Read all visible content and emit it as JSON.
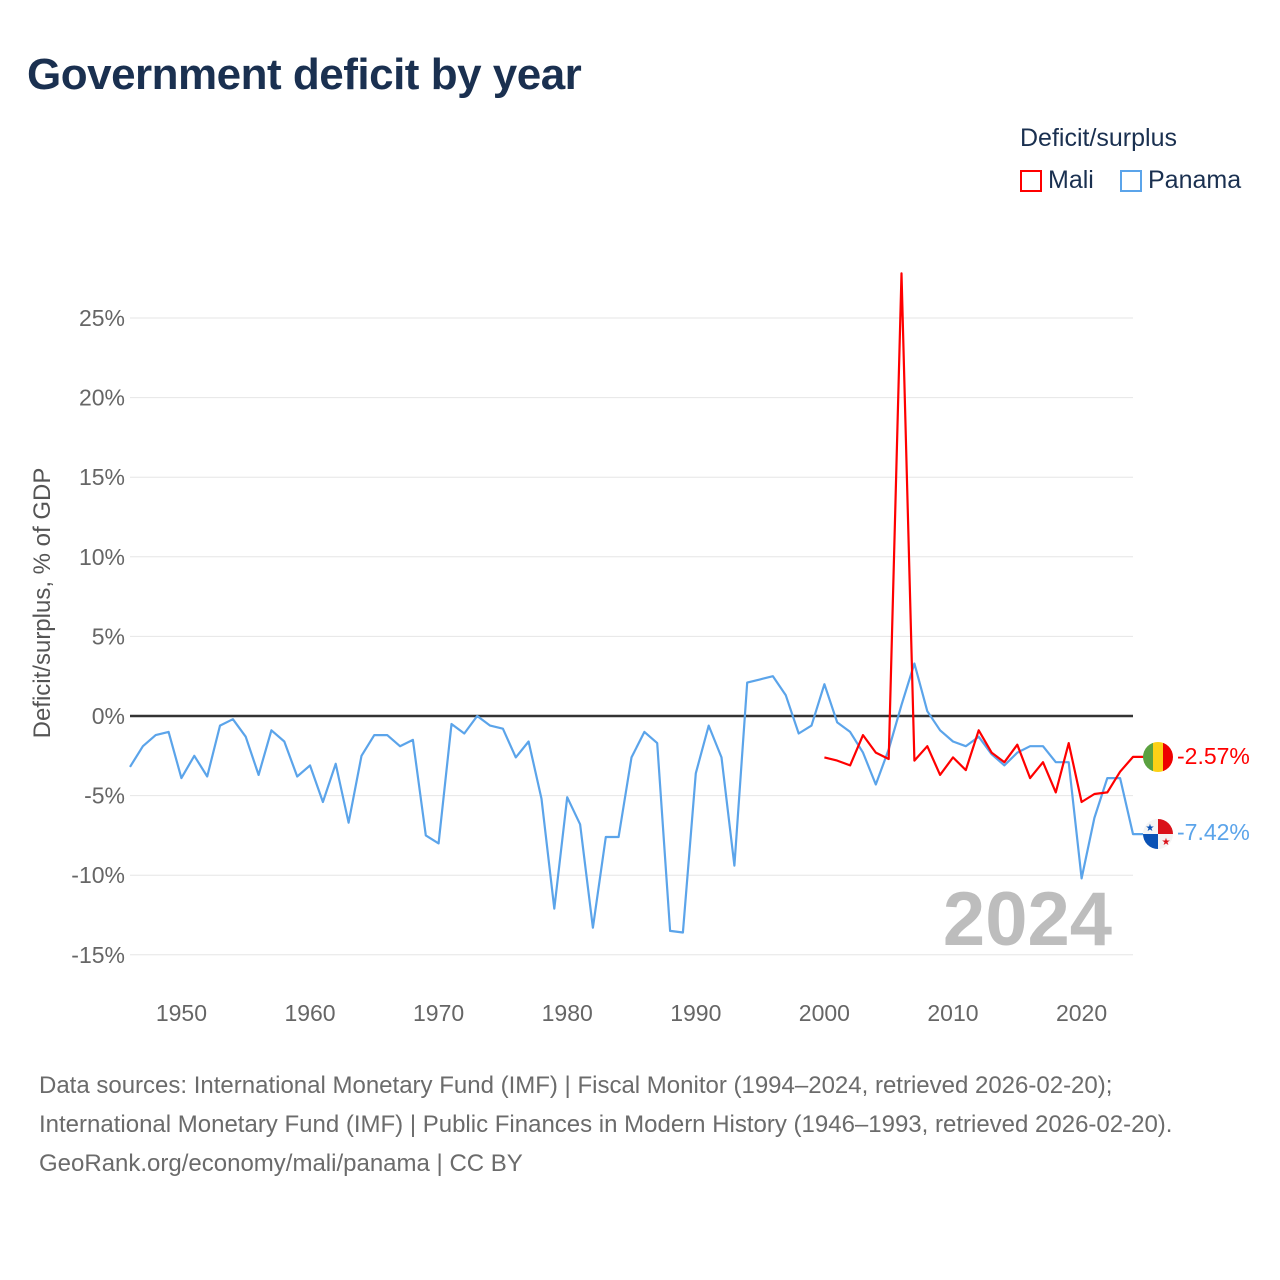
{
  "title": "Government deficit by year",
  "legend": {
    "title": "Deficit/surplus",
    "items": [
      {
        "name": "Mali",
        "color": "#ff0000"
      },
      {
        "name": "Panama",
        "color": "#5ba4ea"
      }
    ]
  },
  "year_label": "2024",
  "footer": {
    "line1": "Data sources: International Monetary Fund (IMF) | Fiscal Monitor (1994–2024, retrieved 2026-02-20); International Monetary Fund (IMF) | Public Finances in Modern History (1946–1993, retrieved 2026-02-20).",
    "line2": "GeoRank.org/economy/mali/panama | CC BY"
  },
  "chart_data": {
    "type": "line",
    "title": "Government deficit by year",
    "ylabel": "Deficit/surplus, % of GDP",
    "xlabel": "",
    "xlim": [
      1946,
      2024
    ],
    "ylim": [
      -17,
      28
    ],
    "yticks": [
      -15,
      -10,
      -5,
      0,
      5,
      10,
      15,
      20,
      25
    ],
    "ytick_labels": [
      "-15%",
      "-10%",
      "-5%",
      "0%",
      "5%",
      "10%",
      "15%",
      "20%",
      "25%"
    ],
    "xticks": [
      1950,
      1960,
      1970,
      1980,
      1990,
      2000,
      2010,
      2020
    ],
    "xtick_labels": [
      "1950",
      "1960",
      "1970",
      "1980",
      "1990",
      "2000",
      "2010",
      "2020"
    ],
    "grid": true,
    "legend_position": "top-right",
    "series": [
      {
        "name": "Mali",
        "color": "#ff0000",
        "end_label": "-2.57%",
        "start_year": 2000,
        "values": [
          -2.6,
          -2.8,
          -3.1,
          -1.2,
          -2.3,
          -2.7,
          27.8,
          -2.8,
          -1.9,
          -3.7,
          -2.6,
          -3.4,
          -0.9,
          -2.3,
          -2.9,
          -1.8,
          -3.9,
          -2.9,
          -4.8,
          -1.7,
          -5.4,
          -4.9,
          -4.8,
          -3.5,
          -2.57
        ]
      },
      {
        "name": "Panama",
        "color": "#5ba4ea",
        "end_label": "-7.42%",
        "start_year": 1946,
        "values": [
          -3.2,
          -1.9,
          -1.2,
          -1.0,
          -3.9,
          -2.5,
          -3.8,
          -0.6,
          -0.2,
          -1.3,
          -3.7,
          -0.9,
          -1.6,
          -3.8,
          -3.1,
          -5.4,
          -3.0,
          -6.7,
          -2.5,
          -1.2,
          -1.2,
          -1.9,
          -1.5,
          -7.5,
          -8.0,
          -0.5,
          -1.1,
          0.0,
          -0.6,
          -0.8,
          -2.6,
          -1.6,
          -5.2,
          -12.1,
          -5.1,
          -6.8,
          -13.3,
          -7.6,
          -7.6,
          -2.6,
          -1.0,
          -1.7,
          -13.5,
          -13.6,
          -3.6,
          -0.6,
          -2.6,
          -9.4,
          2.1,
          2.3,
          2.5,
          1.3,
          -1.1,
          -0.6,
          2.0,
          -0.4,
          -1.0,
          -2.3,
          -4.3,
          -2.1,
          0.7,
          3.3,
          0.3,
          -0.9,
          -1.6,
          -1.9,
          -1.3,
          -2.4,
          -3.1,
          -2.3,
          -1.9,
          -1.9,
          -2.9,
          -2.9,
          -10.2,
          -6.4,
          -3.9,
          -3.9,
          -7.42
        ]
      }
    ]
  }
}
